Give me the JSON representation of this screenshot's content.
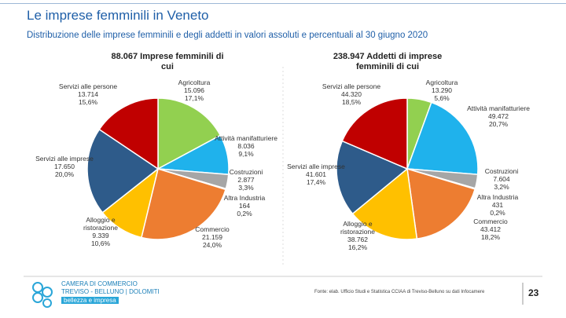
{
  "header": {
    "title": "Le imprese femminili in Veneto",
    "subtitle": "Distribuzione delle imprese femminili e degli addetti in valori assoluti e percentuali al 30 giugno 2020"
  },
  "chart_data": [
    {
      "type": "pie",
      "title": "88.067 Imprese femminili di cui",
      "categories": [
        "Agricoltura",
        "Attività manifatturiere",
        "Costruzioni",
        "Altra Industria",
        "Commercio",
        "Alloggio e ristorazione",
        "Servizi alle imprese",
        "Servizi alle persone"
      ],
      "values": [
        15096,
        8036,
        2877,
        164,
        21159,
        9339,
        17650,
        13714
      ],
      "value_labels": [
        "15.096",
        "8.036",
        "2.877",
        "164",
        "21.159",
        "9.339",
        "17.650",
        "13.714"
      ],
      "share_labels": [
        "17,1%",
        "9,1%",
        "3,3%",
        "0,2%",
        "24,0%",
        "10,6%",
        "20,0%",
        "15,6%"
      ],
      "colors": [
        "#92d050",
        "#1fb2ec",
        "#a6a6a6",
        "#dbe7f5",
        "#ed7d31",
        "#ffc000",
        "#2e5b8a",
        "#c00000"
      ]
    },
    {
      "type": "pie",
      "title": "238.947 Addetti di imprese femminili di cui",
      "categories": [
        "Agricoltura",
        "Attività manifatturiere",
        "Costruzioni",
        "Altra Industria",
        "Commercio",
        "Alloggio e ristorazione",
        "Servizi alle imprese",
        "Servizi alle persone"
      ],
      "values": [
        13290,
        49472,
        7604,
        431,
        43412,
        38762,
        41601,
        44320
      ],
      "value_labels": [
        "13.290",
        "49.472",
        "7.604",
        "431",
        "43.412",
        "38.762",
        "41.601",
        "44.320"
      ],
      "share_labels": [
        "5,6%",
        "20,7%",
        "3,2%",
        "0,2%",
        "18,2%",
        "16,2%",
        "17,4%",
        "18,5%"
      ],
      "colors": [
        "#92d050",
        "#1fb2ec",
        "#a6a6a6",
        "#dbe7f5",
        "#ed7d31",
        "#ffc000",
        "#2e5b8a",
        "#c00000"
      ]
    }
  ],
  "footer": {
    "logo_line1": "CAMERA DI COMMERCIO",
    "logo_line2": "TREVISO - BELLUNO | DOLOMITI",
    "logo_line3": "bellezza e impresa",
    "source": "Fonte: elab. Ufficio Studi e Statistica CCIAA di Treviso-Belluno su dati Infocamere",
    "page": "23"
  }
}
